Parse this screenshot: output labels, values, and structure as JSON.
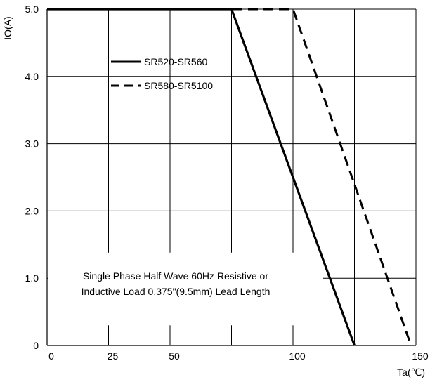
{
  "chart_data": {
    "type": "line",
    "title": "",
    "xlabel": "Ta(℃)",
    "ylabel": "IO(A)",
    "xlim": [
      0,
      150
    ],
    "ylim": [
      0,
      5
    ],
    "grid": true,
    "x_ticks": [
      {
        "value": 0,
        "label": "0"
      },
      {
        "value": 25,
        "label": "25"
      },
      {
        "value": 50,
        "label": "50"
      },
      {
        "value": 100,
        "label": "100"
      },
      {
        "value": 150,
        "label": "150"
      }
    ],
    "y_ticks": [
      {
        "value": 0,
        "label": "0"
      },
      {
        "value": 1,
        "label": "1.0"
      },
      {
        "value": 2,
        "label": "2.0"
      },
      {
        "value": 3,
        "label": "3.0"
      },
      {
        "value": 4,
        "label": "4.0"
      },
      {
        "value": 5,
        "label": "5.0"
      }
    ],
    "series": [
      {
        "name": "SR520-SR560",
        "style": "solid",
        "color": "#000000",
        "x": [
          0,
          75,
          125
        ],
        "y": [
          5.0,
          5.0,
          0
        ]
      },
      {
        "name": "SR580-SR5100",
        "style": "dashed",
        "color": "#000000",
        "x": [
          0,
          100,
          148
        ],
        "y": [
          5.0,
          5.0,
          0
        ]
      }
    ],
    "legend_position": "top-left",
    "annotation": [
      "Single Phase Half Wave 60Hz Resistive or",
      "Inductive Load 0.375\"(9.5mm) Lead Length"
    ]
  }
}
